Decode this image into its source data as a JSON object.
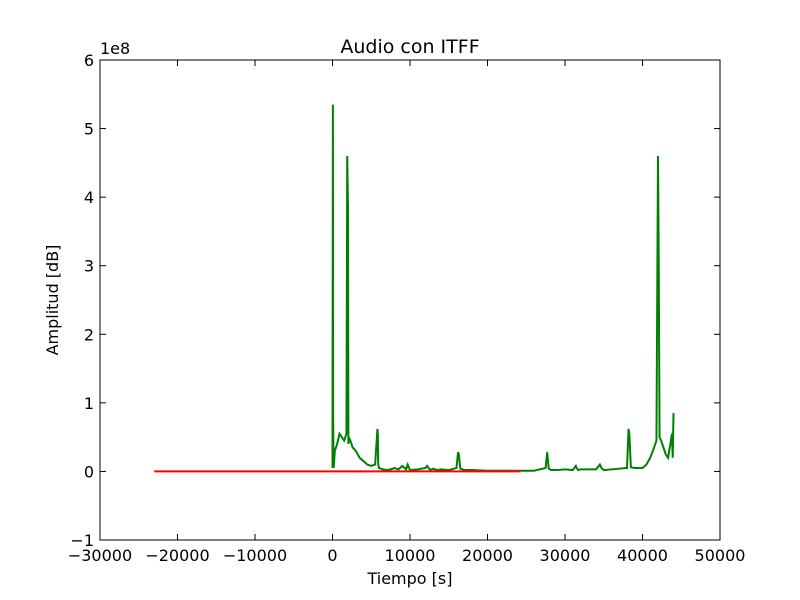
{
  "chart_data": {
    "type": "line",
    "title": "Audio con ITFF",
    "xlabel": "Tiempo [s]",
    "ylabel": "Amplitud [dB]",
    "y_offset_label": "1e8",
    "xlim": [
      -30000,
      50000
    ],
    "ylim": [
      -1,
      6
    ],
    "y_scale_factor": 100000000,
    "x_ticks": [
      -30000,
      -20000,
      -10000,
      0,
      10000,
      20000,
      30000,
      40000,
      50000
    ],
    "x_tick_labels": [
      "−30000",
      "−20000",
      "−10000",
      "0",
      "10000",
      "20000",
      "30000",
      "40000",
      "50000"
    ],
    "y_ticks": [
      -1,
      0,
      1,
      2,
      3,
      4,
      5,
      6
    ],
    "y_tick_labels": [
      "−1",
      "0",
      "1",
      "2",
      "3",
      "4",
      "5",
      "6"
    ],
    "grid": false,
    "colors": {
      "green_series": "#008000",
      "red_series": "#ff0000"
    },
    "series": [
      {
        "color": "#008000",
        "x": [
          0,
          50,
          80,
          120,
          150,
          300,
          600,
          900,
          1200,
          1500,
          1800,
          1900,
          2000,
          2050,
          2100,
          2300,
          2600,
          3000,
          3500,
          4000,
          4500,
          5000,
          5500,
          5800,
          5850,
          5900,
          6000,
          6500,
          7000,
          7500,
          8000,
          8500,
          9000,
          9500,
          9700,
          10000,
          11000,
          12000,
          12200,
          12400,
          12600,
          13000,
          13500,
          14000,
          15000,
          16000,
          16200,
          16300,
          16500,
          17000,
          18000,
          20000,
          22000,
          24000,
          26000,
          27500,
          27700,
          27900,
          28200,
          29000,
          30000,
          31000,
          31400,
          31500,
          31700,
          32000,
          33000,
          34000,
          34500,
          34700,
          35000,
          36000,
          37000,
          38000,
          38200,
          38300,
          38500,
          39000,
          40000,
          40500,
          41000,
          41500,
          41800,
          42000,
          42100,
          42200,
          42400,
          42700,
          43000,
          43300,
          43600,
          43800,
          43900,
          44000
        ],
        "y": [
          0.05,
          5.35,
          0.85,
          0.2,
          0.05,
          0.3,
          0.4,
          0.55,
          0.5,
          0.45,
          0.55,
          4.6,
          3.85,
          0.4,
          0.5,
          0.45,
          0.35,
          0.3,
          0.2,
          0.15,
          0.1,
          0.08,
          0.1,
          0.62,
          0.55,
          0.1,
          0.05,
          0.03,
          0.02,
          0.03,
          0.05,
          0.03,
          0.08,
          0.03,
          0.1,
          0.02,
          0.03,
          0.05,
          0.08,
          0.05,
          0.02,
          0.04,
          0.02,
          0.03,
          0.02,
          0.05,
          0.28,
          0.25,
          0.04,
          0.02,
          0.02,
          0.01,
          0.01,
          0.01,
          0.01,
          0.05,
          0.28,
          0.04,
          0.02,
          0.02,
          0.03,
          0.02,
          0.08,
          0.05,
          0.02,
          0.03,
          0.03,
          0.03,
          0.1,
          0.05,
          0.02,
          0.03,
          0.04,
          0.05,
          0.62,
          0.55,
          0.06,
          0.05,
          0.05,
          0.1,
          0.2,
          0.35,
          0.45,
          4.6,
          2.95,
          0.5,
          0.45,
          0.35,
          0.25,
          0.2,
          0.4,
          0.55,
          0.2,
          0.85
        ]
      },
      {
        "color": "#ff0000",
        "x": [
          -23000,
          -20000,
          -15000,
          -10000,
          -5000,
          0,
          5000,
          10000,
          15000,
          20000,
          24300
        ],
        "y": [
          0,
          0,
          0,
          0,
          0,
          0,
          0,
          0,
          0,
          0,
          0
        ]
      }
    ]
  }
}
